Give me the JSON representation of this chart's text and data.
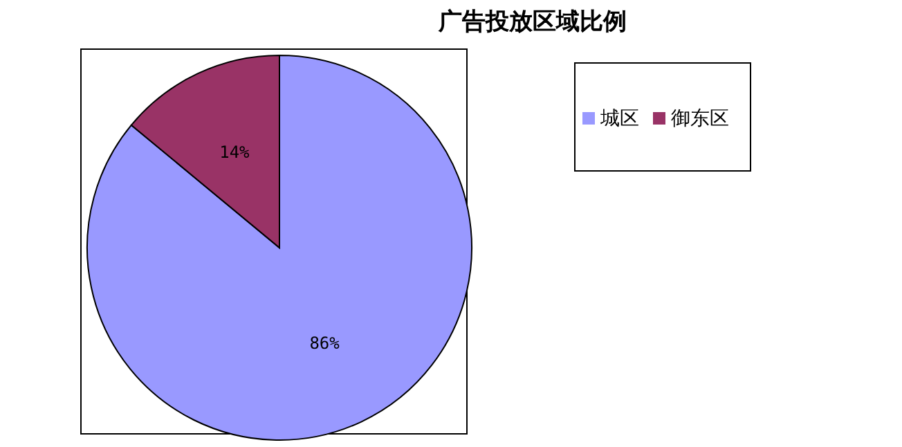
{
  "chart_data": {
    "type": "pie",
    "title": "广告投放区域比例",
    "categories": [
      "城区",
      "御东区"
    ],
    "values": [
      86,
      14
    ],
    "colors": [
      "#9999ff",
      "#993366"
    ],
    "value_labels": [
      "86%",
      "14%"
    ],
    "legend": "right"
  }
}
